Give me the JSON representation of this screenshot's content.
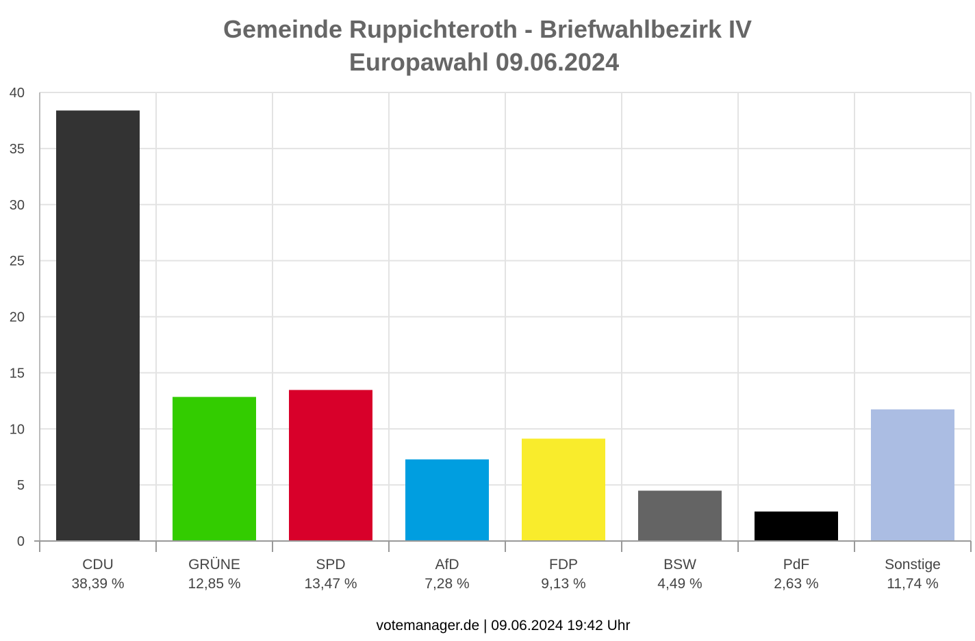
{
  "chart_data": {
    "type": "bar",
    "title": [
      "Gemeinde Ruppichteroth - Briefwahlbezirk IV",
      "Europawahl 09.06.2024"
    ],
    "categories": [
      "CDU",
      "GRÜNE",
      "SPD",
      "AfD",
      "FDP",
      "BSW",
      "PdF",
      "Sonstige"
    ],
    "values": [
      38.39,
      12.85,
      13.47,
      7.28,
      9.13,
      4.49,
      2.63,
      11.74
    ],
    "value_labels": [
      "38,39 %",
      "12,85 %",
      "13,47 %",
      "7,28 %",
      "9,13 %",
      "4,49 %",
      "2,63 %",
      "11,74 %"
    ],
    "colors": [
      "#333333",
      "#33cc00",
      "#d8002a",
      "#009ee0",
      "#f9ec2c",
      "#646464",
      "#000000",
      "#abbde3"
    ],
    "ylim": [
      0,
      40
    ],
    "yticks": [
      0,
      5,
      10,
      15,
      20,
      25,
      30,
      35,
      40
    ],
    "xlabel": "",
    "ylabel": "",
    "grid": true,
    "footer": "votemanager.de | 09.06.2024 19:42 Uhr"
  }
}
